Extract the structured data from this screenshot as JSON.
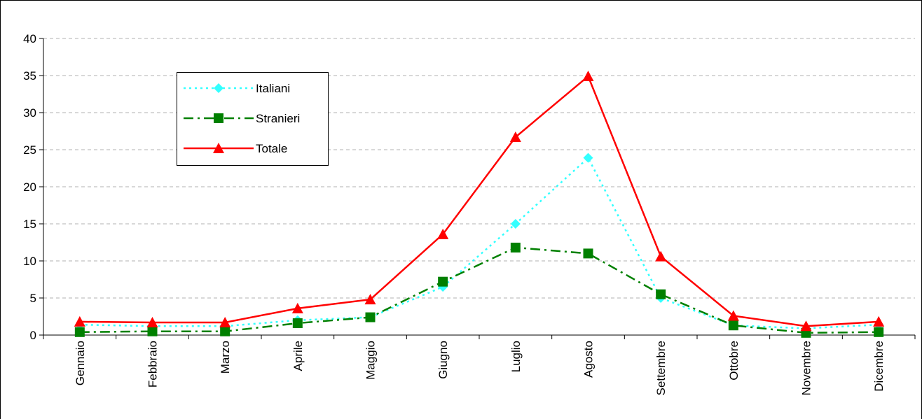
{
  "chart_data": {
    "type": "line",
    "categories": [
      "Gennaio",
      "Febbraio",
      "Marzo",
      "Aprile",
      "Maggio",
      "Giugno",
      "Luglio",
      "Agosto",
      "Settembre",
      "Ottobre",
      "Novembre",
      "Dicembre"
    ],
    "series": [
      {
        "name": "Italiani",
        "color": "#33ffff",
        "values": [
          1.4,
          1.2,
          1.2,
          2.0,
          2.4,
          6.5,
          15.0,
          23.9,
          5.0,
          1.3,
          0.9,
          1.4
        ]
      },
      {
        "name": "Stranieri",
        "color": "#008000",
        "values": [
          0.4,
          0.5,
          0.5,
          1.6,
          2.4,
          7.2,
          11.8,
          11.0,
          5.5,
          1.3,
          0.3,
          0.4
        ]
      },
      {
        "name": "Totale",
        "color": "#ff0000",
        "values": [
          1.8,
          1.7,
          1.7,
          3.6,
          4.8,
          13.6,
          26.7,
          34.9,
          10.6,
          2.6,
          1.2,
          1.8
        ]
      }
    ],
    "ylim": [
      0,
      40
    ],
    "yticks": [
      0,
      5,
      10,
      15,
      20,
      25,
      30,
      35,
      40
    ],
    "grid": true,
    "legend": "upper left"
  }
}
